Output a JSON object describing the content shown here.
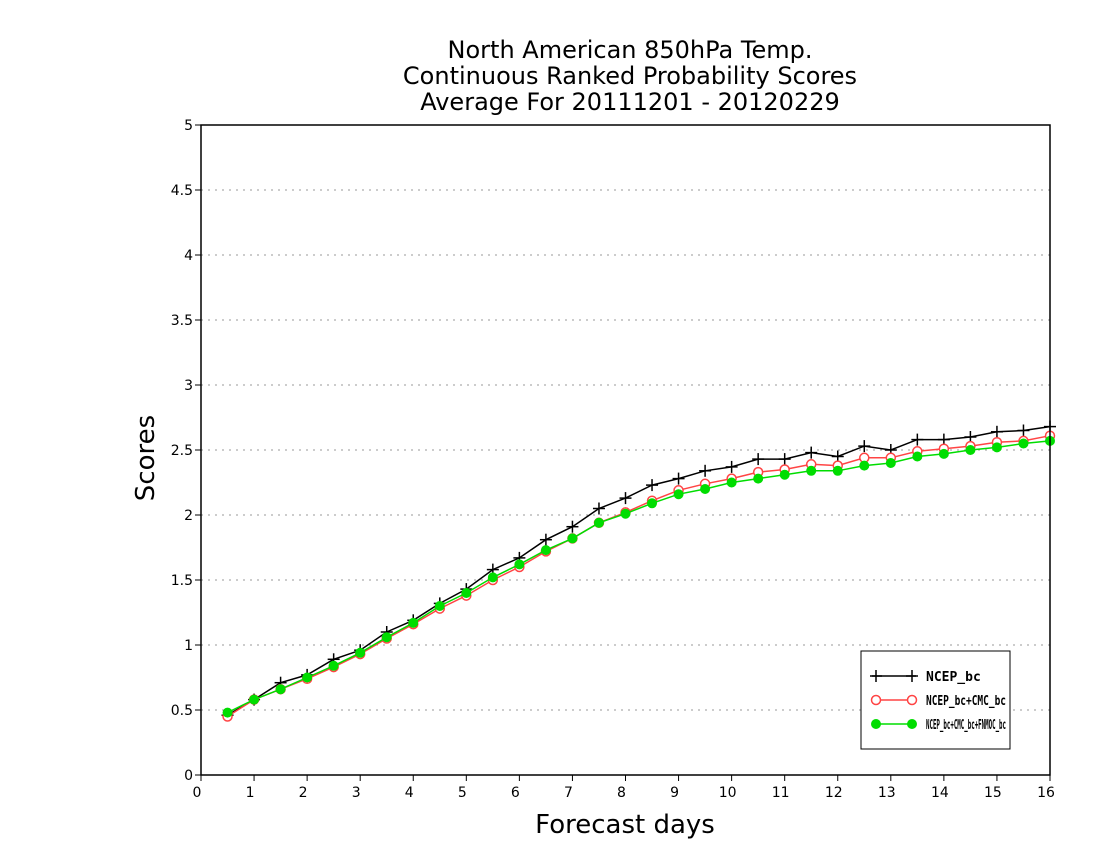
{
  "chart_data": {
    "type": "line",
    "title": [
      "North American 850hPa Temp.",
      "Continuous Ranked Probability Scores",
      "Average For 20111201 - 20120229"
    ],
    "xlabel": "Forecast days",
    "ylabel": "Scores",
    "xlim": [
      0,
      16
    ],
    "ylim": [
      0,
      5
    ],
    "x_ticks": [
      "0",
      "1",
      "2",
      "3",
      "4",
      "5",
      "6",
      "7",
      "8",
      "9",
      "10",
      "11",
      "12",
      "13",
      "14",
      "15",
      "16"
    ],
    "y_ticks": [
      "0",
      "0.5",
      "1",
      "1.5",
      "2",
      "2.5",
      "3",
      "3.5",
      "4",
      "4.5",
      "5"
    ],
    "grid": "horizontal dotted",
    "legend_position": "bottom-right",
    "x": [
      0.5,
      1,
      1.5,
      2,
      2.5,
      3,
      3.5,
      4,
      4.5,
      5,
      5.5,
      6,
      6.5,
      7,
      7.5,
      8,
      8.5,
      9,
      9.5,
      10,
      10.5,
      11,
      11.5,
      12,
      12.5,
      13,
      13.5,
      14,
      14.5,
      15,
      15.5,
      16
    ],
    "series": [
      {
        "name": "NCEP_bc",
        "color": "#000000",
        "marker": "plus",
        "values": [
          0.46,
          0.58,
          0.71,
          0.77,
          0.89,
          0.96,
          1.1,
          1.19,
          1.32,
          1.43,
          1.58,
          1.67,
          1.81,
          1.91,
          2.05,
          2.13,
          2.23,
          2.28,
          2.34,
          2.37,
          2.43,
          2.43,
          2.48,
          2.45,
          2.53,
          2.5,
          2.58,
          2.58,
          2.6,
          2.64,
          2.65,
          2.68
        ]
      },
      {
        "name": "NCEP_bc+CMC_bc",
        "color": "#ff4444",
        "marker": "open-circle",
        "values": [
          0.45,
          0.58,
          0.66,
          0.74,
          0.83,
          0.93,
          1.05,
          1.16,
          1.28,
          1.38,
          1.5,
          1.6,
          1.72,
          1.82,
          1.94,
          2.02,
          2.11,
          2.19,
          2.24,
          2.28,
          2.33,
          2.35,
          2.39,
          2.38,
          2.44,
          2.44,
          2.49,
          2.51,
          2.53,
          2.56,
          2.57,
          2.61
        ]
      },
      {
        "name": "NCEP_bc+CMC_bc+FNMOC_bc",
        "color": "#00dd00",
        "marker": "filled-circle",
        "values": [
          0.48,
          0.58,
          0.66,
          0.75,
          0.84,
          0.94,
          1.06,
          1.17,
          1.3,
          1.4,
          1.52,
          1.62,
          1.73,
          1.82,
          1.94,
          2.01,
          2.09,
          2.16,
          2.2,
          2.25,
          2.28,
          2.31,
          2.34,
          2.34,
          2.38,
          2.4,
          2.45,
          2.47,
          2.5,
          2.52,
          2.55,
          2.57
        ]
      }
    ]
  }
}
